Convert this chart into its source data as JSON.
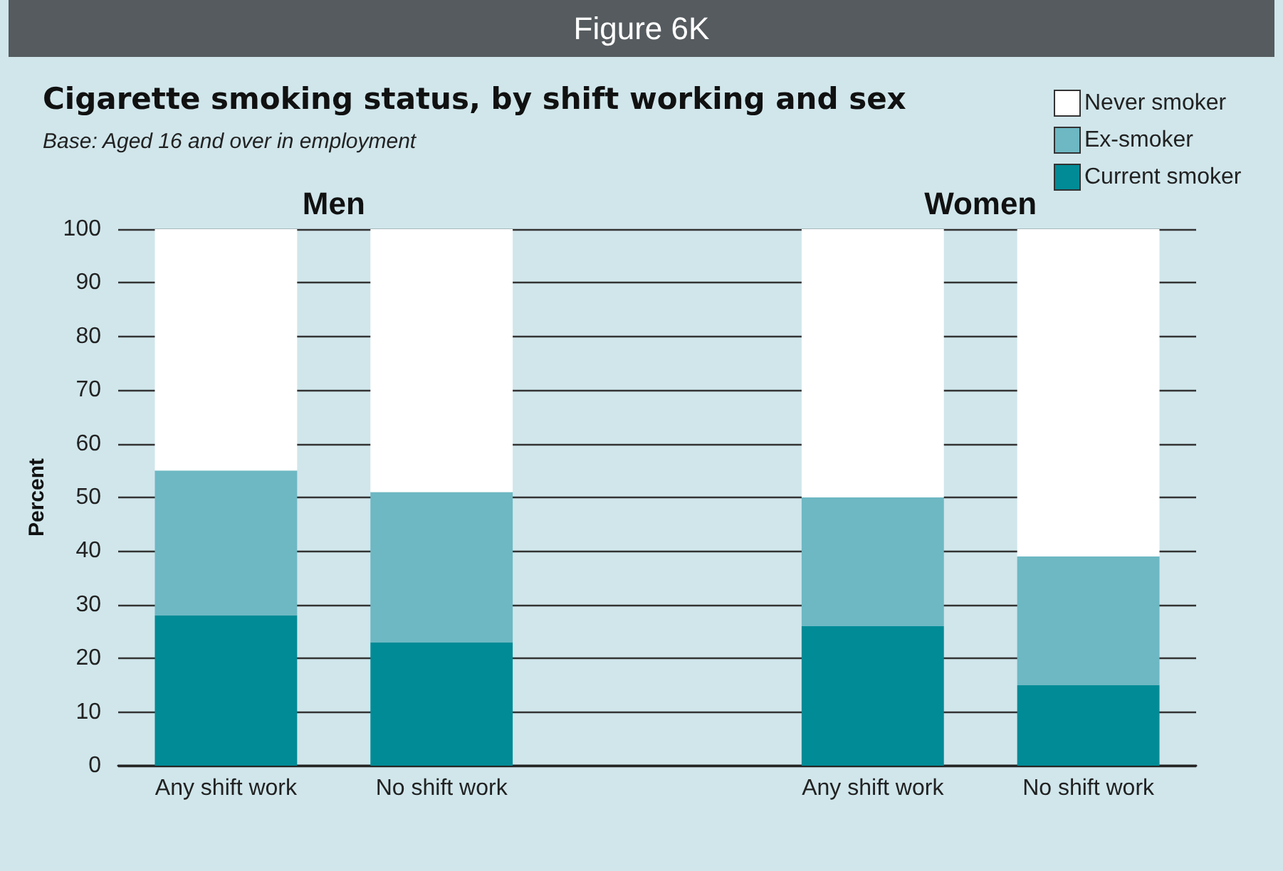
{
  "chart_data": {
    "type": "bar",
    "title": "Cigarette smoking status, by shift working and sex",
    "subtitle": "Base: Aged 16 and over in employment",
    "ylabel": "Percent",
    "annotations": [
      "Figure 6K",
      "Men",
      "Women"
    ],
    "categories": [
      "Any shift work",
      "No shift work",
      null,
      "Any shift work",
      "No shift work"
    ],
    "stacked": true,
    "series": [
      {
        "name": "Current smoker",
        "color": "#008b96",
        "values": [
          28,
          23,
          null,
          26,
          15
        ]
      },
      {
        "name": "Ex-smoker",
        "color": "#6db8c3",
        "values": [
          27,
          28,
          null,
          24,
          24
        ]
      },
      {
        "name": "Never smoker",
        "color": "#ffffff",
        "values": [
          45,
          49,
          null,
          50,
          61
        ]
      }
    ],
    "ylim": [
      0,
      100
    ],
    "yticks": [
      0,
      10,
      20,
      30,
      40,
      50,
      60,
      70,
      80,
      90,
      100
    ],
    "grid": "y",
    "legend": "top right"
  }
}
